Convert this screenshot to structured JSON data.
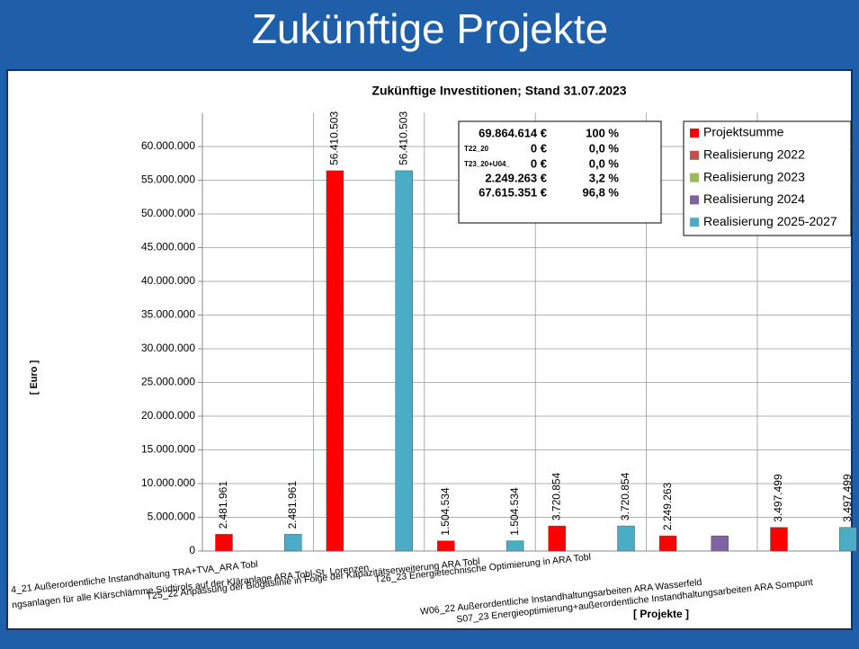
{
  "header": {
    "title": "Zukünftige Projekte"
  },
  "chart_data": {
    "type": "bar",
    "title": "Zukünftige Investitionen; Stand 31.07.2023",
    "y_label": "[ Euro ]",
    "x_label": "[ Projekte ]",
    "categories": [
      "4_21 Außerordentliche Instandhaltung TRA+TVA_ARA Tobl",
      "ngsanlagen für alle Klärschlämme Südtirols auf der Kläranlage ARA Tobl-St. Lorenzen",
      "T25_22 Anpassung der Biogaslinie in Folge der Kapazitätserweiterung ARA Tobl",
      "T26_23 Energietechnische Optimierung in ARA Tobl",
      "W06_22 Außerordentliche Instandhaltungsarbeiten ARA Wasserfeld",
      "S07_23 Energieoptimierung+außerordentliche Instandhaltungsarbeiten ARA Sompunt"
    ],
    "series": [
      {
        "name": "Projektsumme",
        "color": "#ff0000",
        "values": [
          2481961,
          56410503,
          1504534,
          3720854,
          2249263,
          3497499
        ],
        "value_labels": [
          "2.481.961",
          "56.410.503",
          "1.504.534",
          "3.720.854",
          "2.249.263",
          "3.497.499"
        ]
      },
      {
        "name": "Realisierung 2022",
        "color": "#c0504d",
        "values": [
          null,
          null,
          null,
          null,
          null,
          null
        ]
      },
      {
        "name": "Realisierung 2023",
        "color": "#9bbb59",
        "values": [
          null,
          null,
          null,
          null,
          null,
          null
        ]
      },
      {
        "name": "Realisierung 2024",
        "color": "#8064a2",
        "values": [
          null,
          null,
          null,
          null,
          2249263,
          null
        ]
      },
      {
        "name": "Realisierung 2025-2027",
        "color": "#4bacc6",
        "values": [
          2481961,
          56410503,
          1504534,
          3720854,
          null,
          3497499
        ],
        "value_labels": [
          "2.481.961",
          "56.410.503",
          "1.504.534",
          "3.720.854",
          null,
          "3.497.499"
        ]
      }
    ],
    "ylim": [
      0,
      65000000
    ],
    "yticks": [
      0,
      {
        "value": 5000000,
        "label": "5.000.000"
      },
      {
        "value": 10000000,
        "label": "10.000.000"
      },
      {
        "value": 15000000,
        "label": "15.000.000"
      },
      {
        "value": 20000000,
        "label": "20.000.000"
      },
      {
        "value": 25000000,
        "label": "25.000.000"
      },
      {
        "value": 30000000,
        "label": "30.000.000"
      },
      {
        "value": 35000000,
        "label": "35.000.000"
      },
      {
        "value": 40000000,
        "label": "40.000.000"
      },
      {
        "value": 45000000,
        "label": "45.000.000"
      },
      {
        "value": 50000000,
        "label": "50.000.000"
      },
      {
        "value": 55000000,
        "label": "55.000.000"
      },
      {
        "value": 60000000,
        "label": "60.000.000"
      }
    ],
    "grid": true,
    "legend": "top-right",
    "summary": [
      {
        "amount": "69.864.614 €",
        "percent": "100 %"
      },
      {
        "label": "T22_20",
        "amount": "0 €",
        "percent": "0,0 %"
      },
      {
        "label": "T23_20+U04_",
        "amount": "0 €",
        "percent": "0,0 %"
      },
      {
        "amount": "2.249.263 €",
        "percent": "3,2 %"
      },
      {
        "amount": "67.615.351 €",
        "percent": "96,8 %"
      }
    ]
  }
}
